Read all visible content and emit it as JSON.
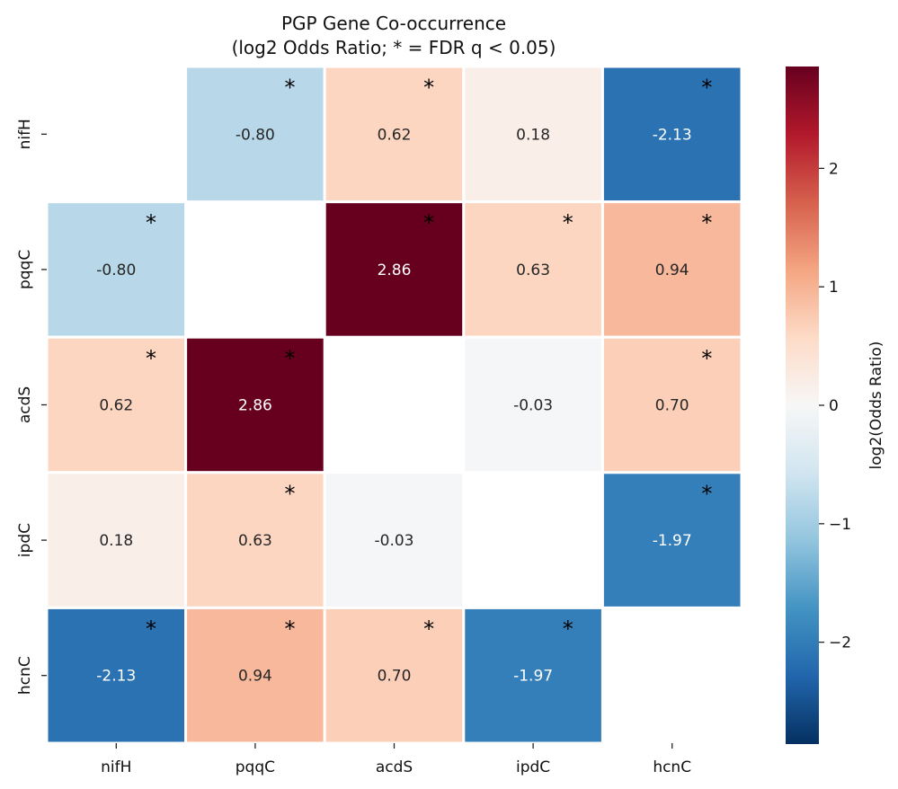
{
  "chart_data": {
    "type": "heatmap",
    "title": "PGP Gene Co-occurrence",
    "subtitle": "(log2 Odds Ratio; * = FDR q < 0.05)",
    "rows": [
      "nifH",
      "pqqC",
      "acdS",
      "ipdC",
      "hcnC"
    ],
    "columns": [
      "nifH",
      "pqqC",
      "acdS",
      "ipdC",
      "hcnC"
    ],
    "values": [
      [
        null,
        -0.8,
        0.62,
        0.18,
        -2.13
      ],
      [
        -0.8,
        null,
        2.86,
        0.63,
        0.94
      ],
      [
        0.62,
        2.86,
        null,
        -0.03,
        0.7
      ],
      [
        0.18,
        0.63,
        -0.03,
        null,
        -1.97
      ],
      [
        -2.13,
        0.94,
        0.7,
        -1.97,
        null
      ]
    ],
    "labels": [
      [
        "",
        "-0.80",
        "0.62",
        "0.18",
        "-2.13"
      ],
      [
        "-0.80",
        "",
        "2.86",
        "0.63",
        "0.94"
      ],
      [
        "0.62",
        "2.86",
        "",
        "-0.03",
        "0.70"
      ],
      [
        "0.18",
        "0.63",
        "-0.03",
        "",
        "-1.97"
      ],
      [
        "-2.13",
        "0.94",
        "0.70",
        "-1.97",
        ""
      ]
    ],
    "significant": [
      [
        false,
        true,
        true,
        false,
        true
      ],
      [
        true,
        false,
        true,
        true,
        true
      ],
      [
        true,
        true,
        false,
        false,
        true
      ],
      [
        false,
        true,
        false,
        false,
        true
      ],
      [
        true,
        true,
        true,
        true,
        false
      ]
    ],
    "significance_marker": "*",
    "colormap": "RdBu_r",
    "colormap_stops": [
      "#053061",
      "#2166ac",
      "#4393c3",
      "#92c5de",
      "#d1e5f0",
      "#f7f7f7",
      "#fddbc7",
      "#f4a582",
      "#d6604d",
      "#b2182b",
      "#67001f"
    ],
    "vlim": [
      -2.86,
      2.86
    ],
    "colorbar": {
      "label": "log2(Odds Ratio)",
      "ticks": [
        2,
        1,
        0,
        -1,
        -2
      ],
      "tick_labels": [
        "2",
        "1",
        "0",
        "−1",
        "−2"
      ]
    },
    "grid": false,
    "legend": "colorbar-right"
  }
}
